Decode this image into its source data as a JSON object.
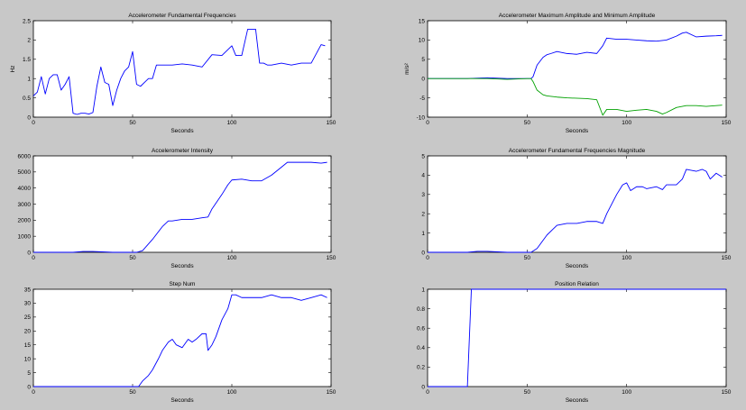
{
  "figure": {
    "background": "#c8c8c8",
    "axes_background": "#ffffff"
  },
  "chart_data": [
    {
      "type": "line",
      "title": "Accelerometer Fundamental Frequencies",
      "xlabel": "Seconds",
      "ylabel": "Hz",
      "xlim": [
        0,
        150
      ],
      "ylim": [
        0,
        2.5
      ],
      "xticks": [
        "0",
        "50",
        "100",
        "150"
      ],
      "yticks": [
        "0",
        "0.5",
        "1",
        "1.5",
        "2",
        "2.5"
      ],
      "series": [
        {
          "color": "#0000ff",
          "x": [
            0,
            2,
            4,
            6,
            8,
            10,
            12,
            14,
            16,
            18,
            20,
            22,
            24,
            26,
            28,
            30,
            32,
            34,
            36,
            38,
            40,
            42,
            44,
            46,
            48,
            50,
            52,
            54,
            56,
            58,
            60,
            62,
            65,
            70,
            75,
            80,
            85,
            90,
            95,
            100,
            102,
            105,
            108,
            110,
            112,
            114,
            116,
            118,
            120,
            125,
            130,
            135,
            140,
            145,
            147
          ],
          "y": [
            0.55,
            0.65,
            1.05,
            0.6,
            1.0,
            1.1,
            1.1,
            0.7,
            0.85,
            1.05,
            0.1,
            0.07,
            0.1,
            0.1,
            0.08,
            0.12,
            0.8,
            1.3,
            0.9,
            0.85,
            0.3,
            0.7,
            1.0,
            1.2,
            1.3,
            1.7,
            0.85,
            0.8,
            0.9,
            1.0,
            1.0,
            1.35,
            1.35,
            1.35,
            1.38,
            1.35,
            1.3,
            1.62,
            1.6,
            1.85,
            1.6,
            1.6,
            2.28,
            2.28,
            2.28,
            1.4,
            1.4,
            1.35,
            1.35,
            1.4,
            1.35,
            1.4,
            1.4,
            1.88,
            1.85
          ]
        }
      ]
    },
    {
      "type": "line",
      "title": "Accelerometer Maximum Amplitude and Minimum Amplitude",
      "xlabel": "Seconds",
      "ylabel": "m/s²",
      "xlim": [
        0,
        150
      ],
      "ylim": [
        -10,
        15
      ],
      "xticks": [
        "0",
        "50",
        "100",
        "150"
      ],
      "yticks": [
        "-10",
        "-5",
        "0",
        "5",
        "10",
        "15"
      ],
      "series": [
        {
          "color": "#0000ff",
          "x": [
            0,
            10,
            20,
            30,
            40,
            50,
            52,
            53,
            55,
            58,
            60,
            62,
            65,
            70,
            75,
            80,
            85,
            88,
            90,
            95,
            100,
            105,
            110,
            115,
            120,
            125,
            128,
            130,
            135,
            140,
            145,
            148
          ],
          "y": [
            0,
            0,
            0,
            0.2,
            0,
            0,
            0,
            0.5,
            3.5,
            5.5,
            6.2,
            6.5,
            7.0,
            6.5,
            6.3,
            6.8,
            6.5,
            8.5,
            10.5,
            10.2,
            10.2,
            10.0,
            9.8,
            9.7,
            10.0,
            11.0,
            11.8,
            12.0,
            10.8,
            11.0,
            11.1,
            11.2
          ]
        },
        {
          "color": "#00a000",
          "x": [
            0,
            10,
            20,
            30,
            40,
            50,
            52,
            53,
            55,
            58,
            60,
            65,
            70,
            80,
            85,
            88,
            90,
            95,
            100,
            105,
            110,
            115,
            118,
            120,
            125,
            130,
            135,
            140,
            145,
            148
          ],
          "y": [
            0,
            0,
            0,
            0,
            -0.2,
            0,
            0,
            -0.8,
            -3.0,
            -4.2,
            -4.5,
            -4.8,
            -5.0,
            -5.2,
            -5.5,
            -9.5,
            -8.0,
            -8.0,
            -8.5,
            -8.2,
            -8.0,
            -8.5,
            -9.2,
            -8.8,
            -7.5,
            -7.0,
            -7.0,
            -7.2,
            -7.0,
            -6.9
          ]
        }
      ]
    },
    {
      "type": "line",
      "title": "Accelerometer Intensity",
      "xlabel": "Seconds",
      "ylabel": "",
      "xlim": [
        0,
        150
      ],
      "ylim": [
        0,
        6000
      ],
      "xticks": [
        "0",
        "50",
        "100",
        "150"
      ],
      "yticks": [
        "0",
        "1000",
        "2000",
        "3000",
        "4000",
        "5000",
        "6000"
      ],
      "series": [
        {
          "color": "#0000ff",
          "x": [
            0,
            10,
            20,
            25,
            30,
            40,
            50,
            52,
            55,
            60,
            65,
            68,
            70,
            75,
            80,
            85,
            88,
            90,
            95,
            98,
            100,
            105,
            110,
            115,
            120,
            125,
            128,
            130,
            135,
            140,
            145,
            148
          ],
          "y": [
            0,
            0,
            0,
            50,
            50,
            0,
            0,
            0,
            100,
            800,
            1600,
            1950,
            1950,
            2050,
            2050,
            2150,
            2200,
            2700,
            3600,
            4200,
            4500,
            4550,
            4450,
            4450,
            4800,
            5300,
            5600,
            5600,
            5600,
            5600,
            5550,
            5600
          ]
        }
      ]
    },
    {
      "type": "line",
      "title": "Accelerometer Fundamental Frequencies Magnitude",
      "xlabel": "Seconds",
      "ylabel": "",
      "xlim": [
        0,
        150
      ],
      "ylim": [
        0,
        5
      ],
      "xticks": [
        "0",
        "50",
        "100",
        "150"
      ],
      "yticks": [
        "0",
        "1",
        "2",
        "3",
        "4",
        "5"
      ],
      "series": [
        {
          "color": "#0000ff",
          "x": [
            0,
            10,
            20,
            25,
            30,
            40,
            50,
            52,
            55,
            60,
            65,
            70,
            75,
            80,
            85,
            88,
            90,
            95,
            98,
            100,
            102,
            105,
            108,
            110,
            115,
            118,
            120,
            125,
            128,
            130,
            135,
            138,
            140,
            142,
            145,
            148
          ],
          "y": [
            0,
            0,
            0,
            0.05,
            0.05,
            0,
            0,
            0,
            0.2,
            0.9,
            1.4,
            1.5,
            1.5,
            1.6,
            1.6,
            1.5,
            2.0,
            3.0,
            3.5,
            3.6,
            3.2,
            3.4,
            3.4,
            3.3,
            3.4,
            3.25,
            3.5,
            3.5,
            3.8,
            4.3,
            4.2,
            4.3,
            4.2,
            3.8,
            4.1,
            3.9
          ]
        }
      ]
    },
    {
      "type": "line",
      "title": "Step Num",
      "xlabel": "Seconds",
      "ylabel": "",
      "xlim": [
        0,
        150
      ],
      "ylim": [
        0,
        35
      ],
      "xticks": [
        "0",
        "50",
        "100",
        "150"
      ],
      "yticks": [
        "0",
        "5",
        "10",
        "15",
        "20",
        "25",
        "30",
        "35"
      ],
      "series": [
        {
          "color": "#0000ff",
          "x": [
            0,
            10,
            20,
            30,
            40,
            50,
            53,
            55,
            58,
            60,
            63,
            65,
            68,
            70,
            72,
            75,
            78,
            80,
            82,
            85,
            87,
            88,
            90,
            92,
            95,
            98,
            100,
            102,
            105,
            110,
            115,
            120,
            125,
            130,
            135,
            140,
            145,
            148
          ],
          "y": [
            0,
            0,
            0,
            0,
            0,
            0,
            0,
            2,
            4,
            6,
            10,
            13,
            16,
            17,
            15,
            14,
            17,
            16,
            17,
            19,
            19,
            13,
            15,
            18,
            24,
            28,
            33,
            33,
            32,
            32,
            32,
            33,
            32,
            32,
            31,
            32,
            33,
            32
          ]
        }
      ]
    },
    {
      "type": "line",
      "title": "Position Relation",
      "xlabel": "Seconds",
      "ylabel": "",
      "xlim": [
        0,
        150
      ],
      "ylim": [
        0,
        1
      ],
      "xticks": [
        "0",
        "50",
        "100",
        "150"
      ],
      "yticks": [
        "0",
        "0.2",
        "0.4",
        "0.6",
        "0.8",
        "1"
      ],
      "series": [
        {
          "color": "#0000ff",
          "x": [
            0,
            20,
            21,
            22,
            150
          ],
          "y": [
            0,
            0,
            0.5,
            1,
            1
          ]
        }
      ]
    }
  ]
}
